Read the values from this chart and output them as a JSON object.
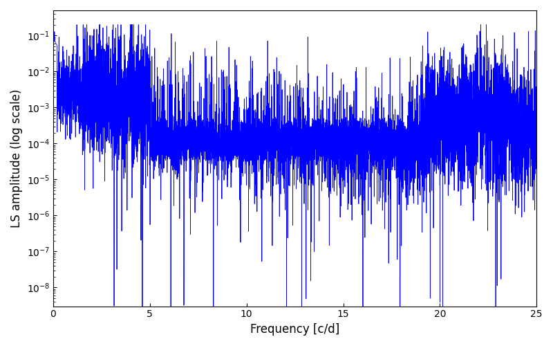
{
  "xlabel": "Frequency [c/d]",
  "ylabel": "LS amplitude (log scale)",
  "title": "",
  "line_color": "#0000ff",
  "xmin": 0,
  "xmax": 25,
  "ymin": 3e-09,
  "ymax": 0.5,
  "background_color": "#ffffff",
  "figsize": [
    8.0,
    5.0
  ],
  "dpi": 100
}
